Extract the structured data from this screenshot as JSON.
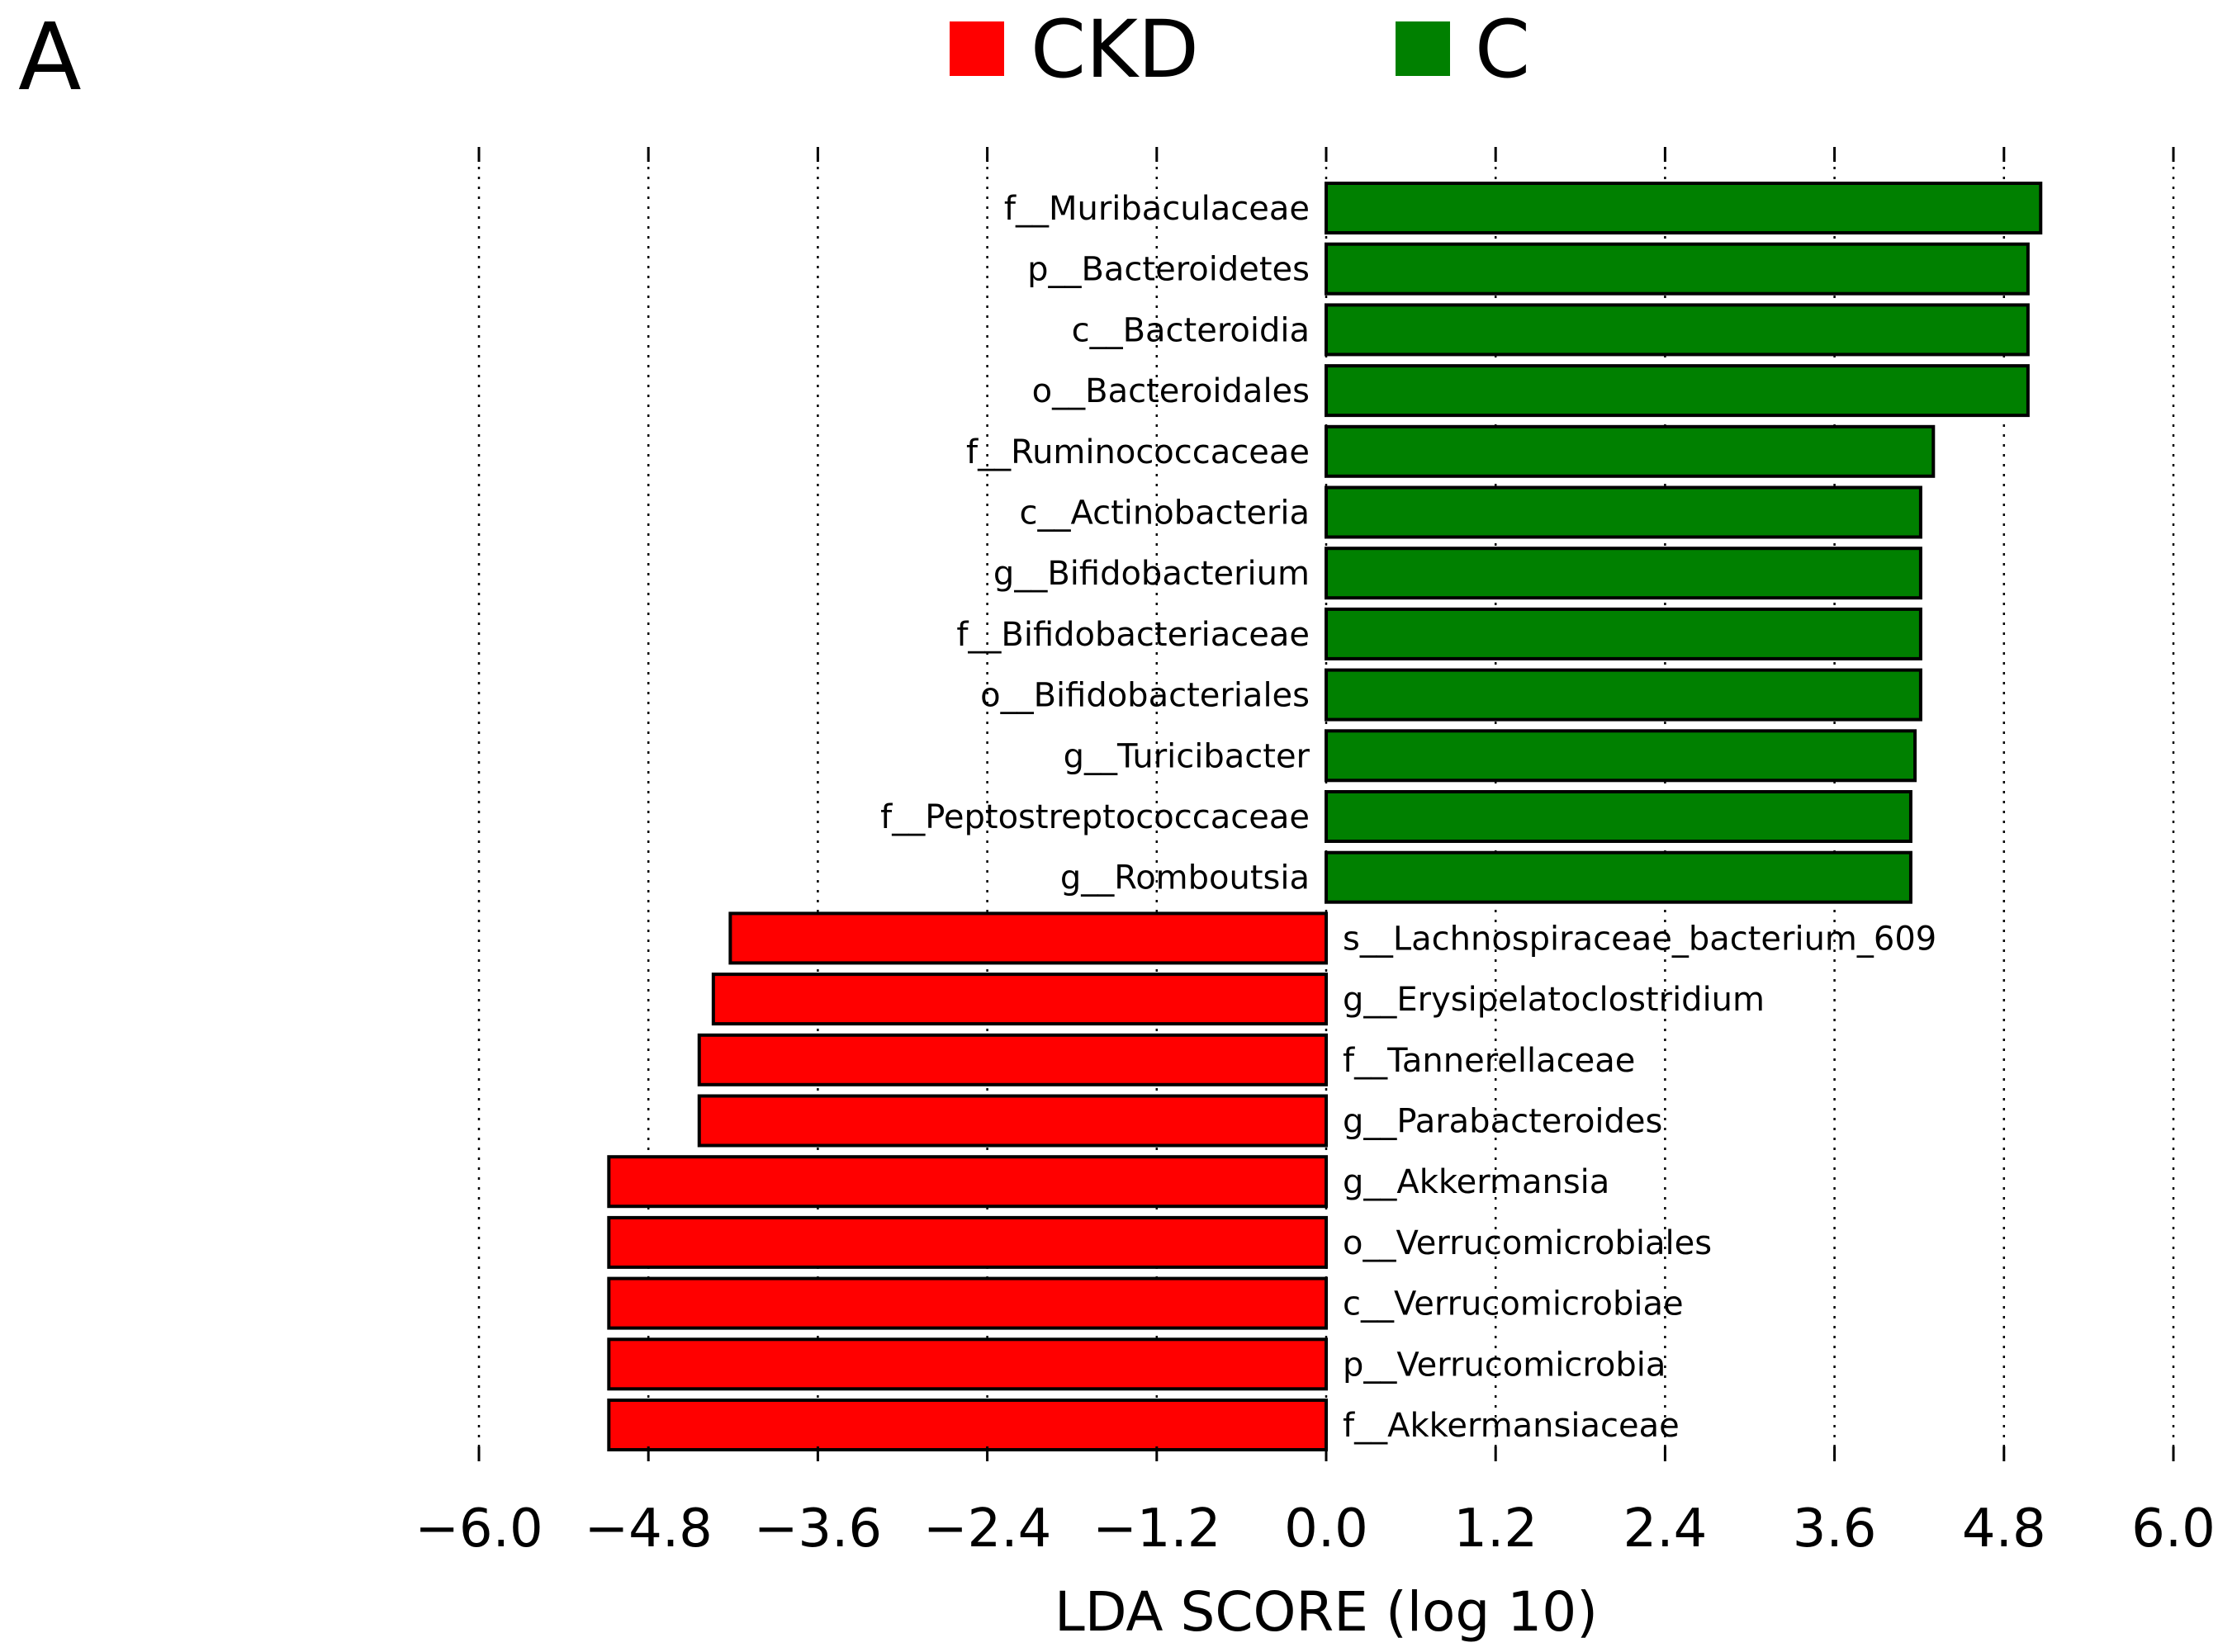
{
  "panel_label": "A",
  "legend": [
    {
      "label": "CKD",
      "color": "#ff0000"
    },
    {
      "label": "C",
      "color": "#008000"
    }
  ],
  "chart_data": {
    "type": "bar",
    "orientation": "horizontal",
    "title": "",
    "xlabel": "LDA SCORE (log 10)",
    "ylabel": "",
    "xlim": [
      -6.0,
      6.0
    ],
    "xticks": [
      -6.0,
      -4.8,
      -3.6,
      -2.4,
      -1.2,
      0.0,
      1.2,
      2.4,
      3.6,
      4.8,
      6.0
    ],
    "xtick_labels": [
      "−6.0",
      "−4.8",
      "−3.6",
      "−2.4",
      "−1.2",
      "0.0",
      "1.2",
      "2.4",
      "3.6",
      "4.8",
      "6.0"
    ],
    "grid": "vertical dotted",
    "colors": {
      "C": "#008000",
      "CKD": "#ff0000"
    },
    "categories": [
      "f__Muribaculaceae",
      "p__Bacteroidetes",
      "c__Bacteroidia",
      "o__Bacteroidales",
      "f__Ruminococcaceae",
      "c__Actinobacteria",
      "g__Bifidobacterium",
      "f__Bifidobacteriaceae",
      "o__Bifidobacteriales",
      "g__Turicibacter",
      "f__Peptostreptococcaceae",
      "g__Romboutsia",
      "s__Lachnospiraceae_bacterium_609",
      "g__Erysipelatoclostridium",
      "f__Tannerellaceae",
      "g__Parabacteroides",
      "g__Akkermansia",
      "o__Verrucomicrobiales",
      "c__Verrucomicrobiae",
      "p__Verrucomicrobia",
      "f__Akkermansiaceae"
    ],
    "groups": [
      "C",
      "C",
      "C",
      "C",
      "C",
      "C",
      "C",
      "C",
      "C",
      "C",
      "C",
      "C",
      "CKD",
      "CKD",
      "CKD",
      "CKD",
      "CKD",
      "CKD",
      "CKD",
      "CKD",
      "CKD"
    ],
    "values": [
      5.06,
      4.97,
      4.97,
      4.97,
      4.3,
      4.21,
      4.21,
      4.21,
      4.21,
      4.17,
      4.14,
      4.14,
      -4.22,
      -4.34,
      -4.44,
      -4.44,
      -5.08,
      -5.08,
      -5.08,
      -5.08,
      -5.08
    ]
  }
}
